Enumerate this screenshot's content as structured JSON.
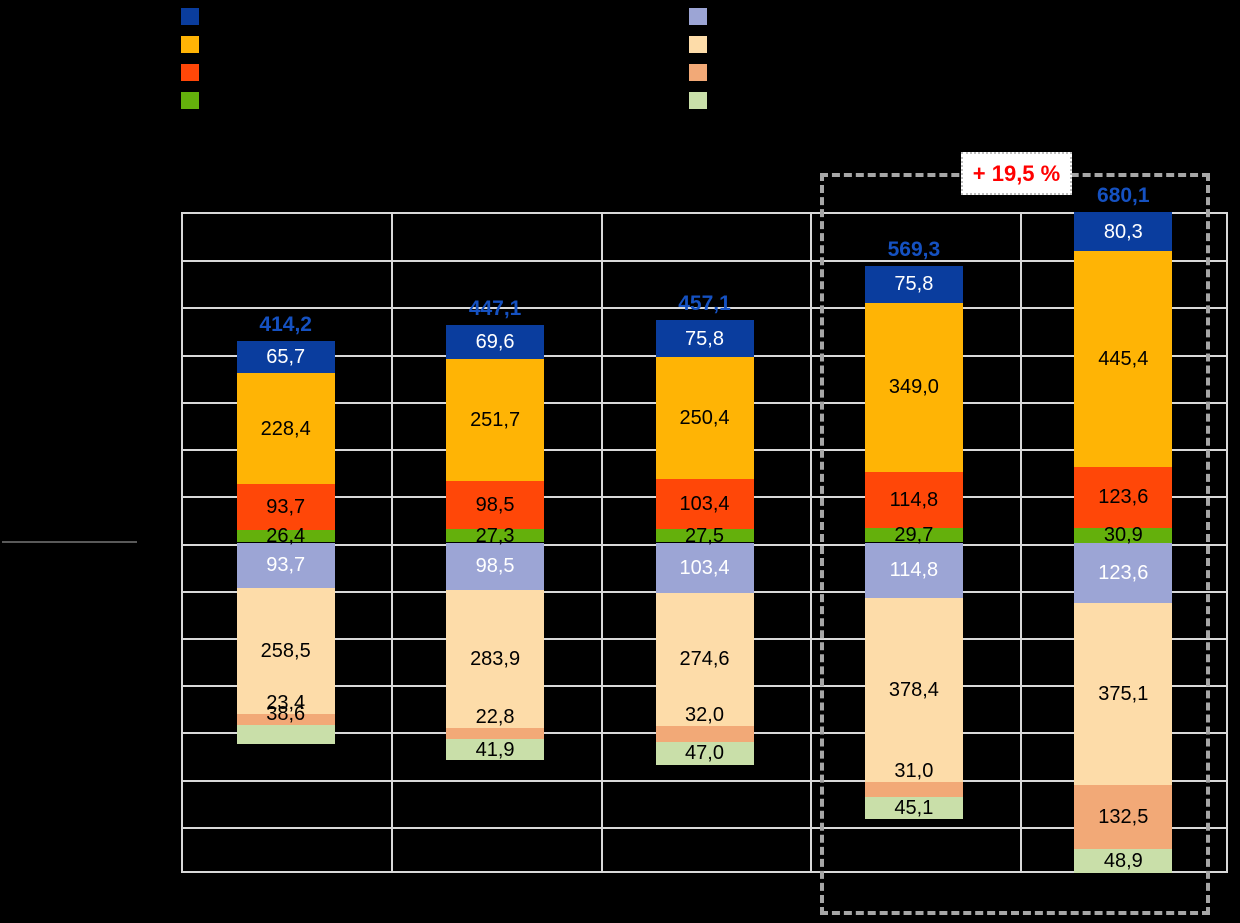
{
  "legend_left": {
    "colors": [
      "#0A3D9E",
      "#FFB405",
      "#FF4708",
      "#64B00C"
    ],
    "names": [
      "dark-blue",
      "orange",
      "red-orange",
      "green"
    ]
  },
  "legend_right": {
    "colors": [
      "#9CA5D5",
      "#FDDCA9",
      "#F2A977",
      "#C9DFA9"
    ],
    "names": [
      "light-purple",
      "light-peach",
      "light-orange",
      "light-green"
    ]
  },
  "growth_annotation": {
    "text": "+ 19,5 %",
    "text_color": "#FF0000"
  },
  "chart_data": {
    "type": "bar",
    "subtype": "mirrored-stacked-columns",
    "columns": 5,
    "totals": [
      414.2,
      447.1,
      457.1,
      569.3,
      680.1
    ],
    "totals_display": [
      "414,2",
      "447,1",
      "457,1",
      "569,3",
      "680,1"
    ],
    "total_label_color": "#1551C1",
    "upper_stack_top_to_baseline": [
      {
        "name": "dark-blue",
        "color": "#0A3D9E",
        "label_color": "#FFFFFF",
        "values": [
          65.7,
          69.6,
          75.8,
          75.8,
          80.3
        ]
      },
      {
        "name": "orange",
        "color": "#FFB405",
        "label_color": "#000000",
        "values": [
          228.4,
          251.7,
          250.4,
          349.0,
          445.4
        ]
      },
      {
        "name": "red-orange",
        "color": "#FF4708",
        "label_color": "#000000",
        "values": [
          93.7,
          98.5,
          103.4,
          114.8,
          123.6
        ]
      },
      {
        "name": "green",
        "color": "#64B00C",
        "label_color": "#000000",
        "values": [
          26.4,
          27.3,
          27.5,
          29.7,
          30.9
        ]
      }
    ],
    "lower_stack_baseline_down": [
      {
        "name": "light-purple",
        "color": "#9CA5D5",
        "label_color": "#FFFFFF",
        "values": [
          93.7,
          98.5,
          103.4,
          114.8,
          123.6
        ]
      },
      {
        "name": "light-peach",
        "color": "#FDDCA9",
        "label_color": "#000000",
        "values": [
          258.5,
          283.9,
          274.6,
          378.4,
          375.1
        ]
      },
      {
        "name": "light-orange",
        "color": "#F2A977",
        "label_color": "#000000",
        "values": [
          23.4,
          22.8,
          32.0,
          31.0,
          132.5
        ]
      },
      {
        "name": "light-green",
        "color": "#C9DFA9",
        "label_color": "#000000",
        "values": [
          38.6,
          41.9,
          47.0,
          45.1,
          48.9
        ]
      }
    ],
    "highlighted_columns": [
      3,
      4
    ],
    "grid": {
      "rows": 14,
      "cols": 5,
      "line_color": "#D9D9D9"
    },
    "decimal_separator": ","
  }
}
